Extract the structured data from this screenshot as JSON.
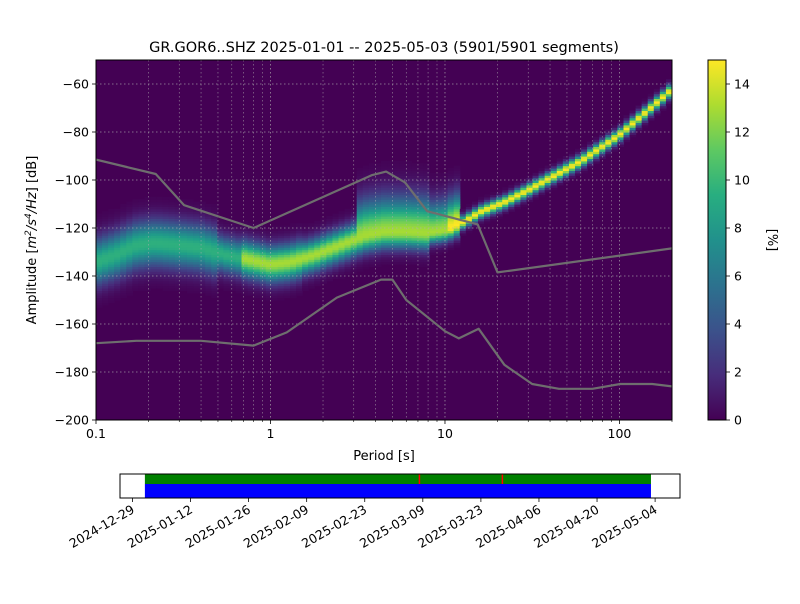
{
  "chart_data": [
    {
      "type": "heatmap",
      "title": "GR.GOR6..SHZ   2025-01-01 -- 2025-05-03  (5901/5901 segments)",
      "xlabel": "Period [s]",
      "ylabel_prefix": "Amplitude [",
      "ylabel_suffix": "] [dB]",
      "ylabel_unit_parts": [
        "m",
        "2",
        "/s",
        "4",
        "/Hz"
      ],
      "x_scale": "log",
      "xlim": [
        0.1,
        200
      ],
      "ylim": [
        -200,
        -50
      ],
      "x_tick_values": [
        0.1,
        1,
        10,
        100
      ],
      "x_tick_labels": [
        "0.1",
        "1",
        "10",
        "100"
      ],
      "y_tick_values": [
        -200,
        -180,
        -160,
        -140,
        -120,
        -100,
        -80,
        -60
      ],
      "y_tick_labels": [
        "−200",
        "−180",
        "−160",
        "−140",
        "−120",
        "−100",
        "−80",
        "−60"
      ],
      "grid": true,
      "colormap": "viridis",
      "colorbar": {
        "label": "[%]",
        "range": [
          0,
          15
        ],
        "tick_values": [
          0,
          2,
          4,
          6,
          8,
          10,
          12,
          14
        ],
        "tick_labels": [
          "0",
          "2",
          "4",
          "6",
          "8",
          "10",
          "12",
          "14"
        ]
      },
      "mode_curve": [
        [
          0.1,
          -134
        ],
        [
          0.13,
          -131
        ],
        [
          0.17,
          -127
        ],
        [
          0.22,
          -126
        ],
        [
          0.3,
          -127
        ],
        [
          0.4,
          -128
        ],
        [
          0.55,
          -131
        ],
        [
          0.75,
          -133
        ],
        [
          1.0,
          -135
        ],
        [
          1.3,
          -134
        ],
        [
          1.8,
          -131
        ],
        [
          2.5,
          -127
        ],
        [
          3.5,
          -123
        ],
        [
          4.5,
          -121.5
        ],
        [
          6,
          -121.5
        ],
        [
          8,
          -122
        ],
        [
          10,
          -121
        ],
        [
          13,
          -117
        ],
        [
          16,
          -113
        ],
        [
          22,
          -109
        ],
        [
          30,
          -104
        ],
        [
          45,
          -97
        ],
        [
          60,
          -92
        ],
        [
          100,
          -81
        ],
        [
          150,
          -70
        ],
        [
          200,
          -62
        ]
      ],
      "reference_curves": [
        {
          "name": "",
          "points": [
            [
              0.1,
              -91.5
            ],
            [
              0.22,
              -97.5
            ],
            [
              0.32,
              -110.5
            ],
            [
              0.8,
              -120
            ],
            [
              3.8,
              -98
            ],
            [
              4.6,
              -96.5
            ],
            [
              5.9,
              -101
            ],
            [
              7.9,
              -113
            ],
            [
              15.4,
              -118.5
            ],
            [
              20,
              -138.5
            ],
            [
              200,
              -128.5
            ]
          ]
        },
        {
          "name": "",
          "points": [
            [
              0.1,
              -168
            ],
            [
              0.17,
              -167
            ],
            [
              0.4,
              -167
            ],
            [
              0.8,
              -169
            ],
            [
              1.24,
              -163.5
            ],
            [
              2.4,
              -149
            ],
            [
              4.3,
              -141.5
            ],
            [
              5.0,
              -141.5
            ],
            [
              6.0,
              -150
            ],
            [
              10,
              -163
            ],
            [
              12,
              -166
            ],
            [
              15.6,
              -162
            ],
            [
              21.9,
              -177
            ],
            [
              31.6,
              -185
            ],
            [
              45,
              -187
            ],
            [
              70,
              -187
            ],
            [
              101,
              -185
            ],
            [
              154,
              -185
            ],
            [
              200,
              -186
            ]
          ]
        }
      ]
    },
    {
      "type": "timeline",
      "xlim": [
        "2024-12-26",
        "2025-05-10"
      ],
      "tick_labels": [
        "2024-12-29",
        "2025-01-12",
        "2025-01-26",
        "2025-02-09",
        "2025-02-23",
        "2025-03-09",
        "2025-03-23",
        "2025-04-06",
        "2025-04-20",
        "2025-05-04"
      ],
      "tick_values": [
        "2024-12-29",
        "2025-01-12",
        "2025-01-26",
        "2025-02-09",
        "2025-02-23",
        "2025-03-09",
        "2025-03-23",
        "2025-04-06",
        "2025-04-20",
        "2025-05-04"
      ],
      "coverage_start": "2025-01-01",
      "coverage_end": "2025-05-03",
      "data_color": "#008000",
      "processed_color": "#0000ff",
      "gap_color": "#ff0000",
      "gaps": [
        "2025-03-08",
        "2025-03-28"
      ]
    }
  ]
}
